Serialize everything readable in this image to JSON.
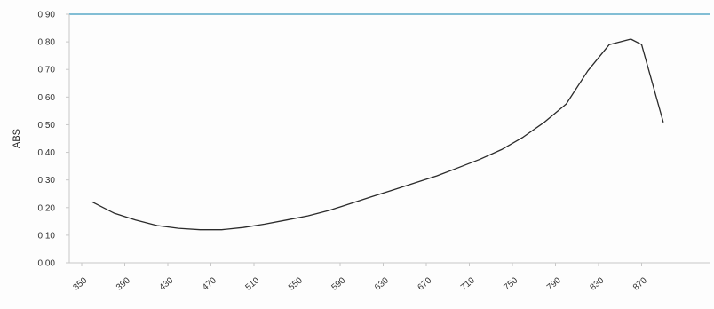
{
  "chart_data": {
    "type": "line",
    "title": "",
    "xlabel": "",
    "ylabel": "ABS",
    "xlim": [
      350,
      890
    ],
    "ylim": [
      0,
      0.9
    ],
    "grid": false,
    "legend": "none",
    "x_tick_labels": [
      "350",
      "390",
      "430",
      "470",
      "510",
      "550",
      "590",
      "630",
      "670",
      "710",
      "750",
      "790",
      "830",
      "870"
    ],
    "y_tick_labels": [
      "0.00",
      "0.10",
      "0.20",
      "0.30",
      "0.40",
      "0.50",
      "0.60",
      "0.70",
      "0.80",
      "0.90"
    ],
    "y_tick_values": [
      0,
      0.1,
      0.2,
      0.3,
      0.4,
      0.5,
      0.6,
      0.7,
      0.8,
      0.9
    ],
    "colors": {
      "line": "#2a2a2a",
      "axis": "#c8c8c8",
      "top_border": "#5aa9c8",
      "label": "#333333"
    },
    "series": [
      {
        "x": [
          360,
          380,
          400,
          420,
          440,
          460,
          480,
          500,
          520,
          540,
          560,
          580,
          600,
          620,
          640,
          660,
          680,
          700,
          720,
          740,
          760,
          780,
          800,
          820,
          840,
          860,
          870,
          890
        ],
        "values": [
          0.22,
          0.18,
          0.155,
          0.135,
          0.125,
          0.12,
          0.12,
          0.128,
          0.14,
          0.155,
          0.17,
          0.19,
          0.215,
          0.24,
          0.265,
          0.29,
          0.315,
          0.345,
          0.375,
          0.41,
          0.455,
          0.51,
          0.575,
          0.695,
          0.79,
          0.81,
          0.79,
          0.51
        ]
      }
    ]
  }
}
